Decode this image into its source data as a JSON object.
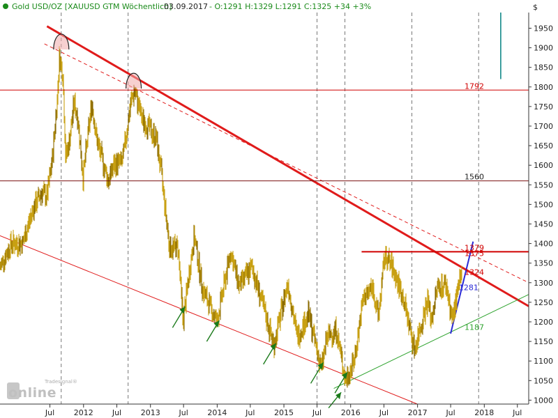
{
  "header": {
    "instrument": "Gold USD/OZ [XAUUSD GTM  Wöchentlich]",
    "date": "03.09.2017",
    "ohlc": "- O:1291 H:1329 L:1291 C:1325 +34 +3%",
    "currency": "$"
  },
  "watermark": {
    "brand": "Tradesignal®",
    "logo": "online"
  },
  "colors": {
    "price": "#c8a013",
    "price_dark": "#8a6a00",
    "downtrend": "#e01b1b",
    "resistance": "#d00000",
    "support_green": "#2ea32e",
    "uptrend_blue": "#2a2ad6",
    "arrow_green": "#1a7a1a",
    "header_green": "#1a8a1a",
    "grid": "#555555",
    "volume_bar": "#008080"
  },
  "chart_data": {
    "type": "candlestick",
    "y_axis": {
      "label": "$",
      "ylim": [
        990,
        1990
      ],
      "ticks": [
        1000,
        1050,
        1100,
        1150,
        1200,
        1250,
        1300,
        1350,
        1400,
        1450,
        1500,
        1550,
        1600,
        1650,
        1700,
        1750,
        1800,
        1850,
        1900,
        1950
      ]
    },
    "x_axis": {
      "ticks": [
        {
          "label": "Jul",
          "date": "2011-07-01"
        },
        {
          "label": "2012",
          "date": "2012-01-01"
        },
        {
          "label": "Jul",
          "date": "2012-07-01"
        },
        {
          "label": "2013",
          "date": "2013-01-01"
        },
        {
          "label": "Jul",
          "date": "2013-07-01"
        },
        {
          "label": "2014",
          "date": "2014-01-01"
        },
        {
          "label": "Jul",
          "date": "2014-07-01"
        },
        {
          "label": "2015",
          "date": "2015-01-01"
        },
        {
          "label": "Jul",
          "date": "2015-07-01"
        },
        {
          "label": "2016",
          "date": "2016-01-01"
        },
        {
          "label": "Jul",
          "date": "2016-07-01"
        },
        {
          "label": "2017",
          "date": "2017-01-01"
        },
        {
          "label": "Jul",
          "date": "2017-07-01"
        },
        {
          "label": "2018",
          "date": "2018-01-01"
        },
        {
          "label": "Jul",
          "date": "2018-07-01"
        }
      ],
      "range": [
        "2010-10-01",
        "2018-09-01"
      ]
    },
    "price_series": [
      [
        "2010-10-01",
        1340
      ],
      [
        "2010-12-01",
        1400
      ],
      [
        "2011-02-01",
        1400
      ],
      [
        "2011-04-01",
        1490
      ],
      [
        "2011-05-15",
        1530
      ],
      [
        "2011-06-15",
        1520
      ],
      [
        "2011-07-15",
        1620
      ],
      [
        "2011-08-10",
        1770
      ],
      [
        "2011-08-22",
        1880
      ],
      [
        "2011-09-10",
        1830
      ],
      [
        "2011-09-25",
        1620
      ],
      [
        "2011-10-15",
        1660
      ],
      [
        "2011-11-10",
        1760
      ],
      [
        "2011-12-01",
        1720
      ],
      [
        "2011-12-29",
        1570
      ],
      [
        "2012-02-15",
        1760
      ],
      [
        "2012-03-15",
        1660
      ],
      [
        "2012-05-15",
        1560
      ],
      [
        "2012-06-15",
        1600
      ],
      [
        "2012-08-01",
        1610
      ],
      [
        "2012-09-15",
        1760
      ],
      [
        "2012-10-05",
        1790
      ],
      [
        "2012-11-15",
        1720
      ],
      [
        "2012-12-15",
        1700
      ],
      [
        "2013-02-01",
        1670
      ],
      [
        "2013-03-01",
        1580
      ],
      [
        "2013-04-15",
        1390
      ],
      [
        "2013-06-01",
        1390
      ],
      [
        "2013-06-28",
        1200
      ],
      [
        "2013-07-25",
        1300
      ],
      [
        "2013-08-28",
        1420
      ],
      [
        "2013-10-15",
        1280
      ],
      [
        "2013-12-31",
        1200
      ],
      [
        "2014-03-15",
        1380
      ],
      [
        "2014-05-01",
        1290
      ],
      [
        "2014-07-10",
        1340
      ],
      [
        "2014-09-15",
        1230
      ],
      [
        "2014-11-07",
        1140
      ],
      [
        "2015-01-22",
        1300
      ],
      [
        "2015-03-15",
        1160
      ],
      [
        "2015-05-15",
        1220
      ],
      [
        "2015-07-24",
        1080
      ],
      [
        "2015-08-25",
        1160
      ],
      [
        "2015-10-15",
        1180
      ],
      [
        "2015-12-03",
        1050
      ],
      [
        "2016-01-20",
        1100
      ],
      [
        "2016-03-10",
        1260
      ],
      [
        "2016-05-01",
        1290
      ],
      [
        "2016-05-30",
        1210
      ],
      [
        "2016-07-06",
        1370
      ],
      [
        "2016-08-15",
        1340
      ],
      [
        "2016-10-15",
        1260
      ],
      [
        "2016-12-15",
        1130
      ],
      [
        "2017-02-27",
        1260
      ],
      [
        "2017-03-15",
        1200
      ],
      [
        "2017-04-20",
        1290
      ],
      [
        "2017-06-06",
        1295
      ],
      [
        "2017-07-10",
        1205
      ],
      [
        "2017-08-05",
        1270
      ],
      [
        "2017-09-03",
        1325
      ]
    ],
    "lines": [
      {
        "name": "downtrend-main",
        "style": "solid",
        "from": [
          "2011-06-15",
          1955
        ],
        "to": [
          "2018-09-01",
          1240
        ]
      },
      {
        "name": "downtrend-dashed",
        "style": "dashed",
        "from": [
          "2011-06-01",
          1910
        ],
        "to": [
          "2018-09-01",
          1300
        ]
      },
      {
        "name": "lower-channel",
        "style": "solid",
        "from": [
          "2010-10-01",
          1420
        ],
        "to": [
          "2016-12-31",
          990
        ]
      },
      {
        "name": "support-green",
        "style": "solid",
        "from": [
          "2015-10-01",
          1030
        ],
        "to": [
          "2018-09-01",
          1270
        ]
      },
      {
        "name": "uptrend-blue",
        "style": "solid",
        "from": [
          "2017-07-01",
          1170
        ],
        "to": [
          "2017-11-01",
          1405
        ]
      }
    ],
    "levels": [
      {
        "value": 1792,
        "label": "1792",
        "start": "2010-10-01"
      },
      {
        "value": 1560,
        "label": "1560",
        "start": "2010-10-01"
      },
      {
        "value": 1379,
        "label": "1379",
        "start": "2016-03-01"
      },
      {
        "value": 1375,
        "label": "1375",
        "start": null
      },
      {
        "value": 1324,
        "label": "1324",
        "start": null
      },
      {
        "value": 1281,
        "label": "1281",
        "start": null
      },
      {
        "value": 1187,
        "label": "1187",
        "start": null
      }
    ],
    "vertical_markers": [
      "2011-09-01",
      "2012-09-01",
      "2015-07-01",
      "2015-12-01",
      "2016-12-01",
      "2017-12-01"
    ],
    "highlight_circles": [
      {
        "date": "2011-09-01",
        "value": 1910
      },
      {
        "date": "2012-10-01",
        "value": 1810
      }
    ],
    "support_arrows": [
      "2013-06-28",
      "2014-01-01",
      "2014-11-07",
      "2015-07-24",
      "2015-12-03"
    ],
    "volume_spike": {
      "date": "2018-04-01",
      "from": 1960,
      "to": 1820
    }
  }
}
